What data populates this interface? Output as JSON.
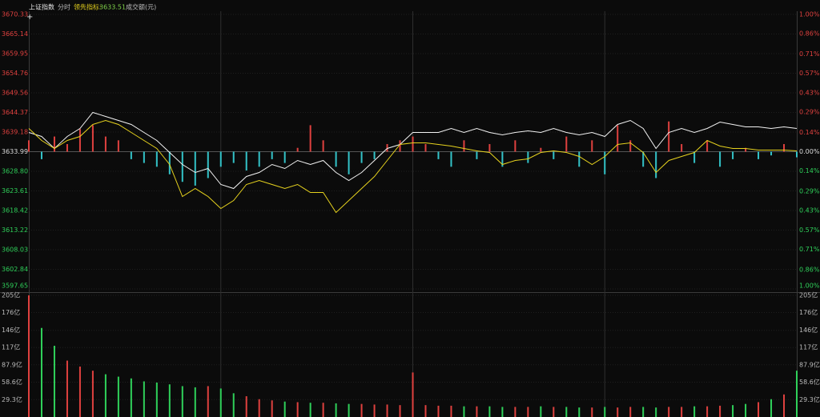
{
  "chart_data": [
    {
      "type": "line",
      "title": "上证指数",
      "subtitle": "分时",
      "indicator_label": "领先指标:",
      "indicator_value": 3633.51,
      "ylim": [
        3597.65,
        3670.33
      ],
      "yticks": [
        3670.33,
        3665.14,
        3659.95,
        3654.76,
        3649.56,
        3644.37,
        3639.18,
        3633.99,
        {
          "value": 3628.8,
          "label": "3628.80"
        },
        3623.61,
        3618.42,
        3613.22,
        3608.03,
        3602.84,
        3597.65
      ],
      "y2lim": [
        -1,
        1
      ],
      "y2ticks": [
        {
          "value": 1,
          "label": "1.00%"
        },
        {
          "value": 0.86,
          "label": "0.86%"
        },
        {
          "value": 0.71,
          "label": "0.71%"
        },
        {
          "value": 0.57,
          "label": "0.57%"
        },
        {
          "value": 0.43,
          "label": "0.43%"
        },
        {
          "value": 0.29,
          "label": "0.29%"
        },
        {
          "value": 0.14,
          "label": "0.14%"
        },
        {
          "value": 0,
          "label": "0.00%"
        },
        {
          "value": -0.14,
          "label": "0.14%"
        },
        {
          "value": -0.29,
          "label": "0.29%"
        },
        {
          "value": -0.43,
          "label": "0.43%"
        },
        {
          "value": -0.57,
          "label": "0.57%"
        },
        {
          "value": -0.71,
          "label": "0.71%"
        },
        {
          "value": -0.86,
          "label": "0.86%"
        },
        {
          "value": -1,
          "label": "1.00%"
        }
      ],
      "up_color": "#e0413f",
      "down_color": "#33c3c8",
      "grid": true,
      "series": [
        {
          "kind": "bar",
          "values": [
            3637,
            3632,
            3638,
            3636,
            3640,
            3641,
            3638,
            3637,
            3632,
            3631,
            3630,
            3628,
            3626,
            3625,
            3627,
            3630,
            3631,
            3629,
            3630,
            3632,
            3631,
            3635,
            3641,
            3637,
            3630,
            3628,
            3631,
            3632,
            3636,
            3637,
            3638,
            3636,
            3632,
            3630,
            3637,
            3632,
            3636,
            3630,
            3637,
            3631,
            3635,
            3632,
            3638,
            3630,
            3637,
            3628,
            3641,
            3637,
            3630,
            3627,
            3642,
            3636,
            3631,
            3637,
            3630,
            3632,
            3635,
            3632,
            3633,
            3636,
            3632.5
          ]
        },
        {
          "kind": "line",
          "color": "#f2f2f2",
          "values": [
            3639.07,
            3638.02,
            3634.84,
            3638.02,
            3640.13,
            3644.37,
            3643.31,
            3642.25,
            3641.19,
            3639.07,
            3636.96,
            3633.78,
            3630.6,
            3628.48,
            3629.54,
            3625.3,
            3624.24,
            3627.42,
            3628.48,
            3630.6,
            3629.54,
            3631.66,
            3630.6,
            3631.66,
            3628.48,
            3626.36,
            3628.48,
            3631.66,
            3634.84,
            3635.9,
            3639.07,
            3639.07,
            3639.07,
            3640.13,
            3639.07,
            3640.13,
            3639.07,
            3638.44,
            3639.07,
            3639.5,
            3639.07,
            3640.13,
            3639.07,
            3638.44,
            3639.07,
            3638.02,
            3641.19,
            3642.25,
            3640.13,
            3634.84,
            3639.07,
            3640.13,
            3639.07,
            3640.13,
            3641.83,
            3641.19,
            3640.56,
            3640.56,
            3640.13,
            3640.56,
            3640.13
          ]
        },
        {
          "kind": "line",
          "color": "#e6d21e",
          "values": [
            3640.13,
            3636.96,
            3634.84,
            3636.96,
            3638.02,
            3641.19,
            3642.25,
            3641.19,
            3639.07,
            3636.96,
            3634.84,
            3630.6,
            3622.13,
            3624.24,
            3622.13,
            3618.95,
            3621.07,
            3625.3,
            3626.36,
            3625.3,
            3624.24,
            3625.3,
            3623.18,
            3623.18,
            3617.89,
            3621.07,
            3624.24,
            3627.42,
            3631.66,
            3635.9,
            3636.32,
            3636.32,
            3635.9,
            3635.47,
            3634.84,
            3634.2,
            3633.78,
            3630.6,
            3631.66,
            3632.08,
            3633.78,
            3634.2,
            3633.78,
            3632.72,
            3630.6,
            3632.72,
            3635.9,
            3636.32,
            3633.78,
            3628.48,
            3631.66,
            3632.72,
            3633.78,
            3636.96,
            3635.47,
            3634.84,
            3634.84,
            3634.41,
            3634.41,
            3634.41,
            3634.2
          ]
        }
      ]
    },
    {
      "type": "bar",
      "title": "成交额(元)",
      "ylim": [
        0,
        209
      ],
      "yticks": [
        {
          "value": 205,
          "label": "205亿"
        },
        {
          "value": 176,
          "label": "176亿"
        },
        {
          "value": 146,
          "label": "146亿"
        },
        {
          "value": 117,
          "label": "117亿"
        },
        {
          "value": 87.9,
          "label": "87.9亿"
        },
        {
          "value": 58.6,
          "label": "58.6亿"
        },
        {
          "value": 29.3,
          "label": "29.3亿"
        }
      ],
      "up_color": "#e0413f",
      "down_color": "#2fd15a",
      "grid": true,
      "values": [
        205,
        150,
        120,
        95,
        85,
        78,
        72,
        68,
        65,
        60,
        58,
        55,
        52,
        50,
        52,
        48,
        40,
        35,
        30,
        28,
        26,
        25,
        24,
        24,
        23,
        22,
        22,
        21,
        21,
        20,
        75,
        20,
        19,
        19,
        18,
        18,
        18,
        17,
        17,
        17,
        18,
        17,
        17,
        16,
        16,
        17,
        16,
        17,
        17,
        16,
        17,
        17,
        18,
        18,
        19,
        20,
        22,
        25,
        30,
        38,
        78
      ]
    }
  ]
}
